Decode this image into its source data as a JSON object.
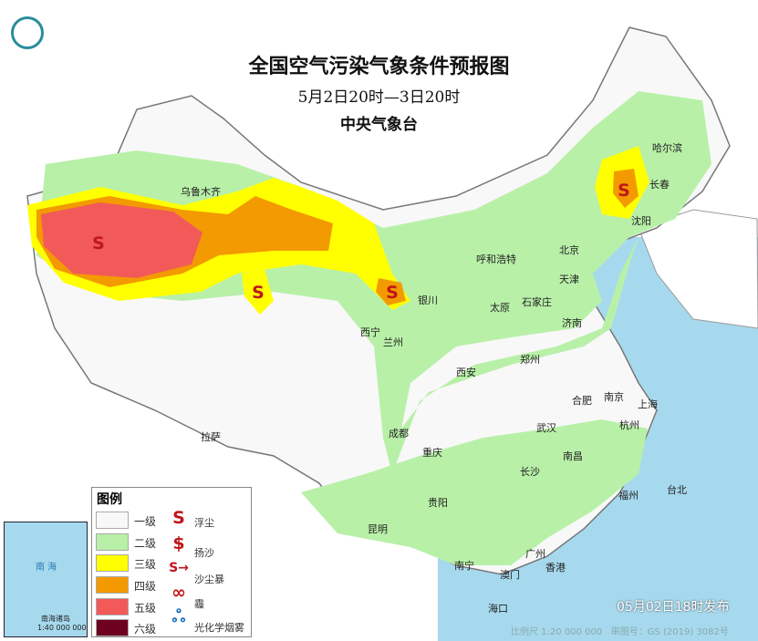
{
  "header": {
    "title": "全国空气污染气象条件预报图",
    "period": "5月2日20时—3日20时",
    "issuer": "中央气象台"
  },
  "cities": [
    {
      "name": "乌鲁木齐"
    },
    {
      "name": "哈尔滨"
    },
    {
      "name": "长春"
    },
    {
      "name": "沈阳"
    },
    {
      "name": "北京"
    },
    {
      "name": "天津"
    },
    {
      "name": "呼和浩特"
    },
    {
      "name": "石家庄"
    },
    {
      "name": "太原"
    },
    {
      "name": "济南"
    },
    {
      "name": "银川"
    },
    {
      "name": "西宁"
    },
    {
      "name": "兰州"
    },
    {
      "name": "郑州"
    },
    {
      "name": "西安"
    },
    {
      "name": "合肥"
    },
    {
      "name": "南京"
    },
    {
      "name": "上海"
    },
    {
      "name": "杭州"
    },
    {
      "name": "武汉"
    },
    {
      "name": "成都"
    },
    {
      "name": "拉萨"
    },
    {
      "name": "重庆"
    },
    {
      "name": "长沙"
    },
    {
      "name": "南昌"
    },
    {
      "name": "福州"
    },
    {
      "name": "台北"
    },
    {
      "name": "贵阳"
    },
    {
      "name": "昆明"
    },
    {
      "name": "南宁"
    },
    {
      "name": "广州"
    },
    {
      "name": "澳门"
    },
    {
      "name": "香港"
    },
    {
      "name": "海口"
    }
  ],
  "legend": {
    "title": "图例",
    "levels": [
      {
        "label": "一级",
        "color": "#f8f8f8"
      },
      {
        "label": "二级",
        "color": "#b8f0a8"
      },
      {
        "label": "三级",
        "color": "#ffff00"
      },
      {
        "label": "四级",
        "color": "#f39a00"
      },
      {
        "label": "五级",
        "color": "#f25a5a"
      },
      {
        "label": "六级",
        "color": "#6e0020"
      }
    ],
    "symbols": [
      {
        "glyph": "S",
        "label": "浮尘",
        "icon": "floating-dust-icon"
      },
      {
        "glyph": "$",
        "label": "扬沙",
        "icon": "blowing-sand-icon"
      },
      {
        "glyph": "S→",
        "label": "沙尘暴",
        "icon": "sandstorm-icon"
      },
      {
        "glyph": "∞",
        "label": "霾",
        "icon": "haze-icon"
      },
      {
        "glyph": "ஃ",
        "label": "光化学烟雾",
        "icon": "photochemical-smog-icon"
      }
    ]
  },
  "inset": {
    "sea": "南 海",
    "islands": "南海诸岛",
    "scale": "1:40 000 000"
  },
  "footer": {
    "published": "05月02日18时发布",
    "scale": "比例尺 1:20 000 000",
    "approval": "审图号：GS (2019) 3082号"
  }
}
